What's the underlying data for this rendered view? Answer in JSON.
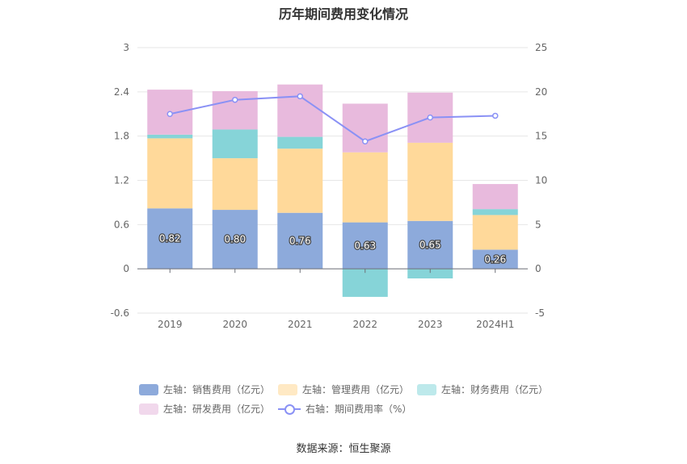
{
  "title": "历年期间费用变化情况",
  "source": "数据来源：恒生聚源",
  "chart_data": {
    "type": "bar",
    "stacked": true,
    "categories": [
      "2019",
      "2020",
      "2021",
      "2022",
      "2023",
      "2024H1"
    ],
    "left_axis": {
      "ylim": [
        -0.6,
        3
      ],
      "ticks": [
        "-0.6",
        "0",
        "0.6",
        "1.2",
        "1.8",
        "2.4",
        "3"
      ]
    },
    "right_axis": {
      "ylim": [
        -5,
        25
      ],
      "ticks": [
        "-5",
        "0",
        "5",
        "10",
        "15",
        "20",
        "25"
      ]
    },
    "grid": true,
    "legend_position": "bottom",
    "series": [
      {
        "name": "左轴：销售费用（亿元）",
        "axis": "left",
        "type": "bar",
        "color": "#8DAADB",
        "legend_color": "#8DAADB",
        "values": [
          0.82,
          0.8,
          0.76,
          0.63,
          0.65,
          0.26
        ],
        "data_labels": [
          "0.82",
          "0.80",
          "0.76",
          "0.63",
          "0.65",
          "0.26"
        ]
      },
      {
        "name": "左轴：管理费用（亿元）",
        "axis": "left",
        "type": "bar",
        "color": "#FFD99A",
        "legend_color": "#FFE9C4",
        "values": [
          0.95,
          0.7,
          0.87,
          0.95,
          1.06,
          0.47
        ]
      },
      {
        "name": "左轴：财务费用（亿元）",
        "axis": "left",
        "type": "bar",
        "color": "#86D4D8",
        "legend_color": "#BDE9EB",
        "values": [
          0.05,
          0.39,
          0.16,
          -0.38,
          -0.13,
          0.08
        ]
      },
      {
        "name": "左轴：研发费用（亿元）",
        "axis": "left",
        "type": "bar",
        "color": "#E8BADD",
        "legend_color": "#F1D8EC",
        "values": [
          0.61,
          0.52,
          0.71,
          0.66,
          0.68,
          0.34
        ]
      },
      {
        "name": "右轴：期间费用率（%）",
        "axis": "right",
        "type": "line",
        "color": "#8A91F5",
        "legend_color": "#8A91F5",
        "values": [
          17.5,
          19.1,
          19.5,
          14.4,
          17.1,
          17.3
        ]
      }
    ]
  }
}
